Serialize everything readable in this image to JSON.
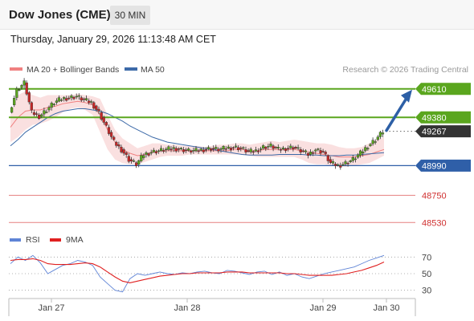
{
  "header": {
    "title": "Dow Jones (CME)",
    "timeframe": "30 MIN",
    "datetime": "Thursday, January 29, 2026 11:13:48 AM CET"
  },
  "legend": {
    "ma20": "MA 20 + Bollinger Bands",
    "ma50": "MA 50",
    "credit": "Research © 2026 Trading Central",
    "rsi": "RSI",
    "rsi_ma": "9MA"
  },
  "colors": {
    "resistance": "#5aa61e",
    "support": "#2f5fa8",
    "support_light": "#e06060",
    "current": "#333333",
    "ma20": "#f08080",
    "ma50": "#3d6aa8",
    "rsi": "#5f84d6",
    "rsi_ma": "#e02020",
    "arrow": "#2d5fa6"
  },
  "chart_data": [
    {
      "type": "candlestick",
      "x_ticks": [
        "Jan 27",
        "Jan 28",
        "Jan 29",
        "Jan 30"
      ],
      "ylim": [
        48480,
        49680
      ],
      "levels": [
        {
          "value": 49610,
          "label": "49610",
          "kind": "resistance"
        },
        {
          "value": 49380,
          "label": "49380",
          "kind": "resistance"
        },
        {
          "value": 49267,
          "label": "49267",
          "kind": "current"
        },
        {
          "value": 48990,
          "label": "48990",
          "kind": "support"
        },
        {
          "value": 48750,
          "label": "48750",
          "kind": "support-light"
        },
        {
          "value": 48530,
          "label": "48530",
          "kind": "support-light"
        }
      ],
      "price_path": [
        49420,
        49600,
        49660,
        49420,
        49390,
        49440,
        49500,
        49530,
        49540,
        49550,
        49520,
        49500,
        49420,
        49300,
        49180,
        49120,
        49040,
        49000,
        49080,
        49100,
        49110,
        49120,
        49130,
        49120,
        49110,
        49110,
        49120,
        49130,
        49120,
        49130,
        49140,
        49130,
        49100,
        49110,
        49140,
        49150,
        49120,
        49130,
        49140,
        49110,
        49080,
        49120,
        49100,
        49010,
        48990,
        49010,
        49040,
        49090,
        49150,
        49200,
        49267
      ],
      "bollinger_upper": [
        49400,
        49560,
        49590,
        49560,
        49540,
        49560,
        49560,
        49560,
        49560,
        49570,
        49560,
        49550,
        49530,
        49400,
        49280,
        49210,
        49170,
        49130,
        49150,
        49170,
        49170,
        49160,
        49160,
        49150,
        49150,
        49150,
        49140,
        49150,
        49160,
        49160,
        49170,
        49170,
        49160,
        49170,
        49180,
        49190,
        49180,
        49190,
        49200,
        49190,
        49180,
        49170,
        49170,
        49160,
        49140,
        49130,
        49130,
        49140,
        49170,
        49200,
        49220
      ],
      "bollinger_lower": [
        49180,
        49220,
        49280,
        49320,
        49330,
        49350,
        49380,
        49420,
        49450,
        49460,
        49440,
        49400,
        49260,
        49120,
        49040,
        49010,
        49000,
        49000,
        49020,
        49040,
        49060,
        49070,
        49070,
        49070,
        49080,
        49080,
        49080,
        49080,
        49080,
        49080,
        49080,
        49080,
        49070,
        49060,
        49060,
        49060,
        49060,
        49060,
        49060,
        49040,
        49010,
        49000,
        49000,
        48990,
        48980,
        48980,
        48990,
        49000,
        49010,
        49040,
        49070
      ],
      "ma20": [
        49300,
        49380,
        49430,
        49440,
        49440,
        49460,
        49470,
        49490,
        49500,
        49510,
        49500,
        49480,
        49400,
        49280,
        49180,
        49120,
        49090,
        49070,
        49080,
        49100,
        49110,
        49110,
        49110,
        49110,
        49110,
        49110,
        49110,
        49110,
        49110,
        49110,
        49120,
        49120,
        49110,
        49110,
        49120,
        49120,
        49120,
        49120,
        49120,
        49110,
        49100,
        49090,
        49080,
        49070,
        49060,
        49060,
        49060,
        49070,
        49080,
        49100,
        49120
      ],
      "ma50": [
        49150,
        49200,
        49260,
        49300,
        49340,
        49380,
        49410,
        49430,
        49440,
        49450,
        49450,
        49440,
        49430,
        49410,
        49380,
        49350,
        49310,
        49280,
        49250,
        49220,
        49200,
        49180,
        49170,
        49160,
        49150,
        49140,
        49130,
        49120,
        49110,
        49100,
        49090,
        49080,
        49075,
        49075,
        49075,
        49075,
        49080,
        49080,
        49080,
        49080,
        49075,
        49075,
        49070,
        49070,
        49070,
        49075,
        49075,
        49080,
        49085,
        49090,
        49095
      ],
      "forecast_arrow": {
        "from": 49267,
        "to": 49610
      }
    },
    {
      "type": "line",
      "title": "RSI",
      "ylim": [
        20,
        80
      ],
      "y_ticks": [
        70,
        50,
        30
      ],
      "series": [
        {
          "name": "RSI",
          "values": [
            62,
            70,
            66,
            72,
            63,
            50,
            55,
            60,
            62,
            66,
            64,
            60,
            46,
            38,
            30,
            28,
            44,
            50,
            48,
            50,
            52,
            50,
            49,
            51,
            50,
            52,
            53,
            51,
            50,
            54,
            53,
            51,
            49,
            52,
            53,
            49,
            52,
            48,
            50,
            46,
            44,
            47,
            50,
            52,
            54,
            56,
            58,
            62,
            66,
            69,
            72
          ]
        },
        {
          "name": "9MA",
          "values": [
            66,
            67,
            67,
            68,
            66,
            62,
            61,
            61,
            61,
            62,
            63,
            62,
            58,
            52,
            46,
            41,
            39,
            41,
            43,
            45,
            47,
            48,
            49,
            50,
            50,
            51,
            51,
            51,
            51,
            52,
            52,
            52,
            51,
            51,
            51,
            51,
            51,
            50,
            50,
            49,
            48,
            48,
            48,
            48,
            49,
            50,
            52,
            54,
            57,
            60,
            64
          ]
        }
      ]
    }
  ]
}
